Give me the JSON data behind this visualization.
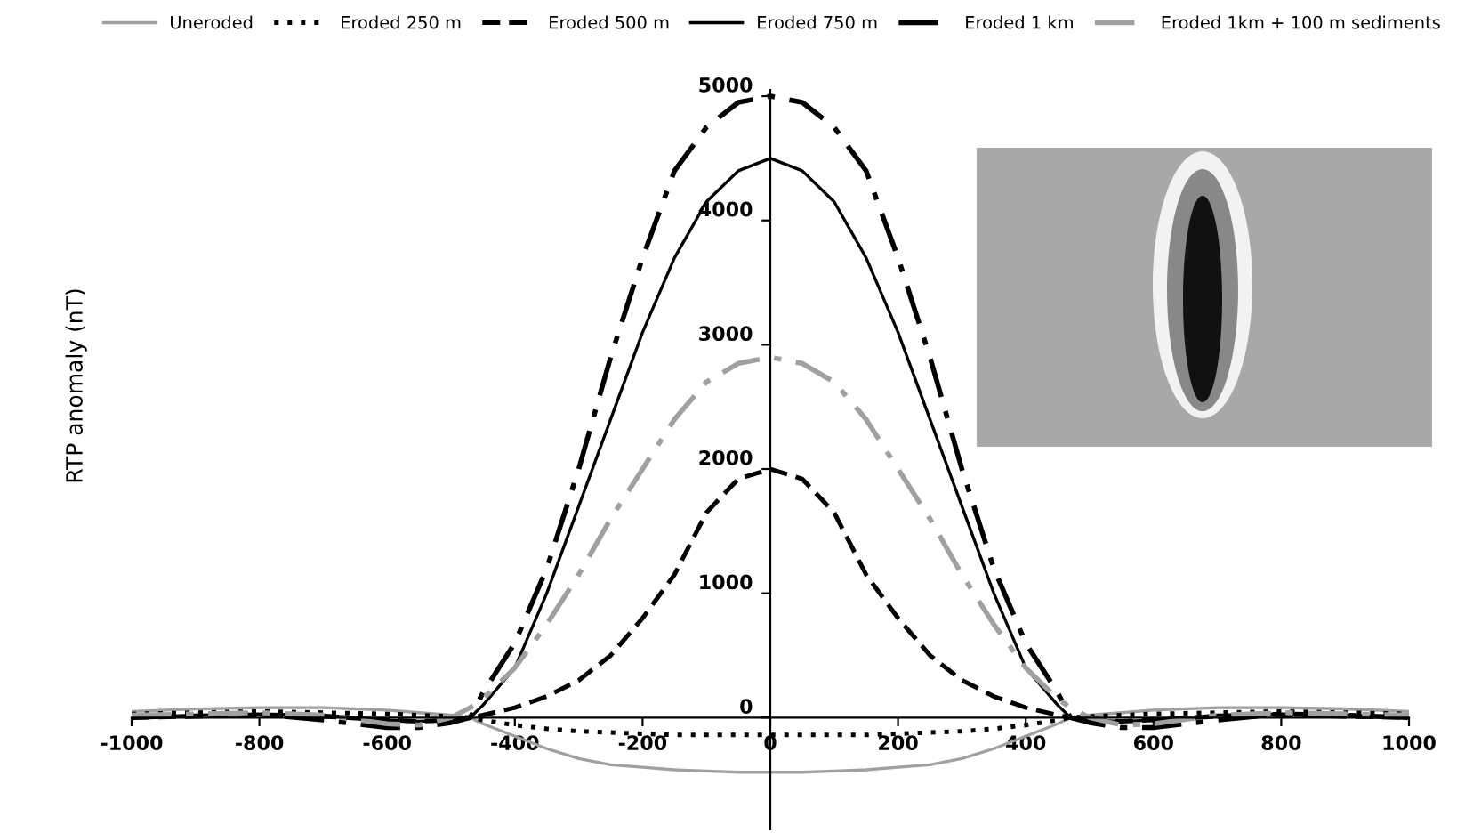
{
  "chart_data": {
    "type": "line",
    "ylabel": "RTP anomaly (nT)",
    "x": [
      -1000,
      -900,
      -800,
      -700,
      -600,
      -550,
      -500,
      -470,
      -450,
      -400,
      -350,
      -300,
      -250,
      -200,
      -150,
      -100,
      -50,
      0,
      50,
      100,
      150,
      200,
      250,
      300,
      350,
      400,
      450,
      470,
      500,
      550,
      600,
      700,
      800,
      900,
      1000
    ],
    "series": [
      {
        "name": "Uneroded",
        "color": "#a0a0a0",
        "line_style": "solid",
        "values": [
          50,
          70,
          80,
          80,
          60,
          40,
          20,
          0,
          -50,
          -150,
          -250,
          -330,
          -380,
          -400,
          -420,
          -430,
          -440,
          -440,
          -440,
          -430,
          -420,
          -400,
          -380,
          -330,
          -250,
          -150,
          -50,
          0,
          20,
          40,
          60,
          80,
          80,
          70,
          50
        ]
      },
      {
        "name": "Eroded 250 m",
        "color": "#000000",
        "line_style": "dotted",
        "values": [
          30,
          40,
          50,
          40,
          30,
          20,
          10,
          0,
          -20,
          -60,
          -90,
          -110,
          -120,
          -130,
          -140,
          -140,
          -140,
          -140,
          -140,
          -140,
          -140,
          -130,
          -120,
          -110,
          -90,
          -60,
          -20,
          0,
          10,
          20,
          30,
          40,
          50,
          40,
          30
        ]
      },
      {
        "name": "Eroded 500 m",
        "color": "#000000",
        "line_style": "dashed",
        "values": [
          0,
          10,
          20,
          10,
          -20,
          -30,
          -20,
          0,
          20,
          80,
          170,
          300,
          500,
          800,
          1150,
          1650,
          1920,
          2000,
          1920,
          1650,
          1150,
          800,
          500,
          300,
          170,
          80,
          20,
          0,
          -20,
          -30,
          -20,
          10,
          20,
          10,
          0
        ]
      },
      {
        "name": "Eroded 750 m",
        "color": "#000000",
        "line_style": "solid",
        "values": [
          0,
          20,
          30,
          20,
          -20,
          -30,
          -20,
          0,
          100,
          400,
          1000,
          1700,
          2400,
          3100,
          3700,
          4150,
          4400,
          4500,
          4400,
          4150,
          3700,
          3100,
          2400,
          1700,
          1000,
          400,
          100,
          0,
          -20,
          -30,
          -20,
          20,
          30,
          20,
          0
        ]
      },
      {
        "name": "Eroded 1 km",
        "color": "#000000",
        "line_style": "dashdot",
        "values": [
          0,
          20,
          30,
          -20,
          -80,
          -80,
          -40,
          0,
          200,
          600,
          1200,
          2000,
          2900,
          3700,
          4400,
          4750,
          4950,
          5000,
          4950,
          4750,
          4400,
          3700,
          2900,
          2000,
          1200,
          600,
          200,
          0,
          -40,
          -80,
          -80,
          -20,
          30,
          20,
          0
        ]
      },
      {
        "name": "Eroded 1km + 100 m sediments",
        "color": "#a0a0a0",
        "line_style": "dashdot",
        "values": [
          20,
          30,
          40,
          20,
          -50,
          -60,
          0,
          80,
          150,
          400,
          750,
          1150,
          1600,
          2000,
          2400,
          2700,
          2850,
          2900,
          2850,
          2700,
          2400,
          2000,
          1600,
          1150,
          750,
          400,
          150,
          80,
          0,
          -60,
          -50,
          20,
          40,
          30,
          20
        ]
      }
    ],
    "xlim": [
      -1000,
      1000
    ],
    "xticks": [
      -1000,
      -800,
      -600,
      -400,
      -200,
      0,
      200,
      400,
      600,
      800,
      1000
    ],
    "ylim": [
      -900,
      5050
    ],
    "yticks": [
      0,
      1000,
      2000,
      3000,
      4000,
      5000
    ],
    "grid": false,
    "legend": "top"
  }
}
